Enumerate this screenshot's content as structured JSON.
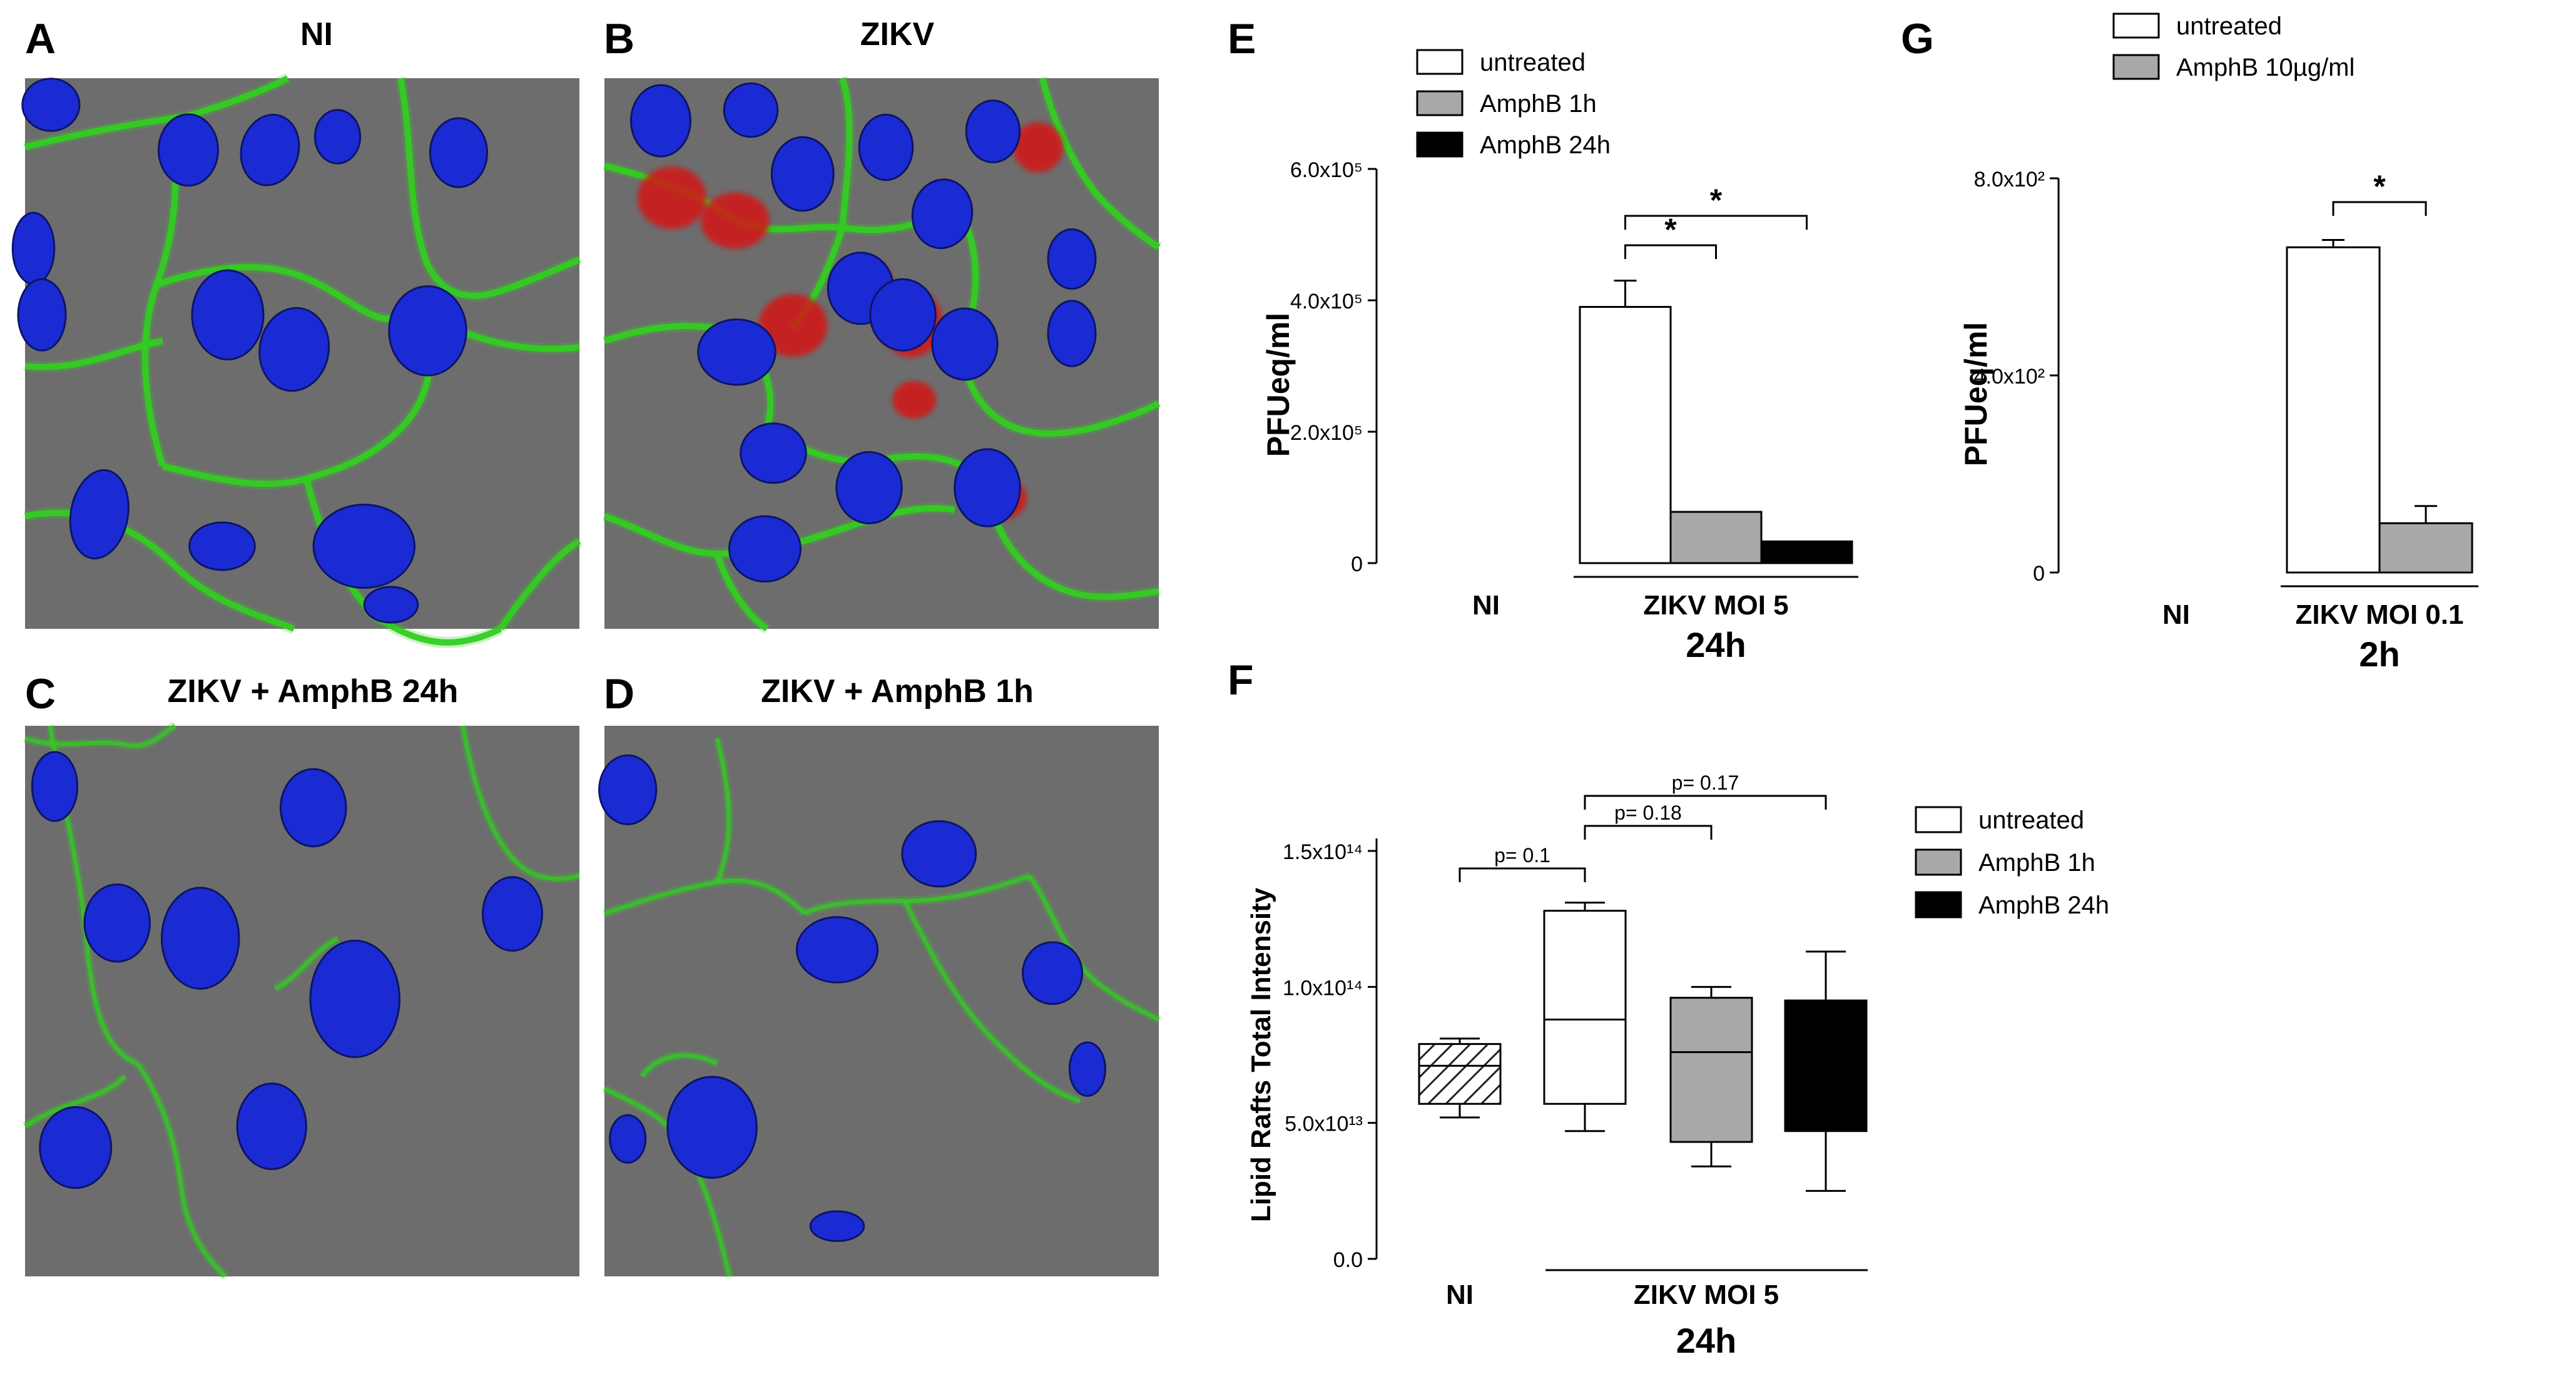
{
  "panels": {
    "A": {
      "letter": "A",
      "title": "NI"
    },
    "B": {
      "letter": "B",
      "title": "ZIKV"
    },
    "C": {
      "letter": "C",
      "title": "ZIKV +  AmphB 24h"
    },
    "D": {
      "letter": "D",
      "title": "ZIKV +  AmphB 1h"
    },
    "E": {
      "letter": "E"
    },
    "F": {
      "letter": "F"
    },
    "G": {
      "letter": "G"
    }
  },
  "colors": {
    "membrane_green": "#33cc22",
    "nucleus_blue": "#1a2bd4",
    "virus_red": "#d41818",
    "micrograph_bg": "#6d6d6d",
    "untreated": "#ffffff",
    "amphb_1h": "#a8a8a8",
    "amphb_24h": "#000000"
  },
  "chart_data": [
    {
      "panel": "E",
      "type": "bar",
      "ylabel": "PFUeq/ml",
      "ylim": [
        0,
        600000
      ],
      "y_ticks": [
        "0",
        "2.0x10⁵",
        "4.0x10⁵",
        "6.0x10⁵"
      ],
      "y_tick_values": [
        0,
        200000,
        400000,
        600000
      ],
      "groups": [
        {
          "label": "NI",
          "bars": []
        },
        {
          "label": "ZIKV MOI 5",
          "bars": [
            {
              "series": "untreated",
              "value": 390000,
              "error": 40000
            },
            {
              "series": "AmphB 1h",
              "value": 78000,
              "error": 0
            },
            {
              "series": "AmphB 24h",
              "value": 33000,
              "error": 0
            }
          ]
        }
      ],
      "time_label": "24h",
      "legend": [
        "untreated",
        "AmphB 1h",
        "AmphB 24h"
      ],
      "significance": [
        {
          "from": "untreated",
          "to": "AmphB 1h",
          "label": "*"
        },
        {
          "from": "untreated",
          "to": "AmphB 24h",
          "label": "*"
        }
      ]
    },
    {
      "panel": "G",
      "type": "bar",
      "ylabel": "PFUeq/ml",
      "ylim": [
        0,
        800
      ],
      "y_ticks": [
        "0",
        "4.0x10²",
        "8.0x10²"
      ],
      "y_tick_values": [
        0,
        400,
        800
      ],
      "groups": [
        {
          "label": "NI",
          "bars": []
        },
        {
          "label": "ZIKV MOI 0.1",
          "bars": [
            {
              "series": "untreated",
              "value": 660,
              "error": 15
            },
            {
              "series": "AmphB 10µg/ml",
              "value": 100,
              "error": 35
            }
          ]
        }
      ],
      "time_label": "2h",
      "legend": [
        "untreated",
        "AmphB 10µg/ml"
      ],
      "significance": [
        {
          "from": "untreated",
          "to": "AmphB 10µg/ml",
          "label": "*"
        }
      ]
    },
    {
      "panel": "F",
      "type": "box",
      "ylabel": "Lipid Rafts Total Intensity",
      "ylim": [
        0,
        150000000000000
      ],
      "y_ticks": [
        "0.0",
        "5.0x10¹³",
        "1.0x10¹⁴",
        "1.5x10¹⁴"
      ],
      "y_tick_values": [
        0,
        50000000000000,
        100000000000000,
        150000000000000
      ],
      "boxes": [
        {
          "group": "NI",
          "series": "NI",
          "min": 52000000000000,
          "q1": 57000000000000,
          "median": 71000000000000,
          "q3": 79000000000000,
          "max": 81000000000000
        },
        {
          "group": "ZIKV MOI 5",
          "series": "untreated",
          "min": 47000000000000,
          "q1": 57000000000000,
          "median": 88000000000000,
          "q3": 128000000000000,
          "max": 131000000000000
        },
        {
          "group": "ZIKV MOI 5",
          "series": "AmphB 1h",
          "min": 34000000000000,
          "q1": 43000000000000,
          "median": 76000000000000,
          "q3": 96000000000000,
          "max": 100000000000000
        },
        {
          "group": "ZIKV MOI 5",
          "series": "AmphB 24h",
          "min": 25000000000000,
          "q1": 47000000000000,
          "median": 95000000000000,
          "q3": 95000000000000,
          "max": 113000000000000
        }
      ],
      "x_labels": [
        "NI",
        "ZIKV MOI 5"
      ],
      "time_label": "24h",
      "legend": [
        "untreated",
        "AmphB 1h",
        "AmphB 24h"
      ],
      "significance": [
        {
          "from": "NI",
          "to": "untreated",
          "label": "p= 0.1"
        },
        {
          "from": "untreated",
          "to": "AmphB 1h",
          "label": "p= 0.18"
        },
        {
          "from": "untreated",
          "to": "AmphB 24h",
          "label": "p= 0.17"
        }
      ]
    }
  ]
}
